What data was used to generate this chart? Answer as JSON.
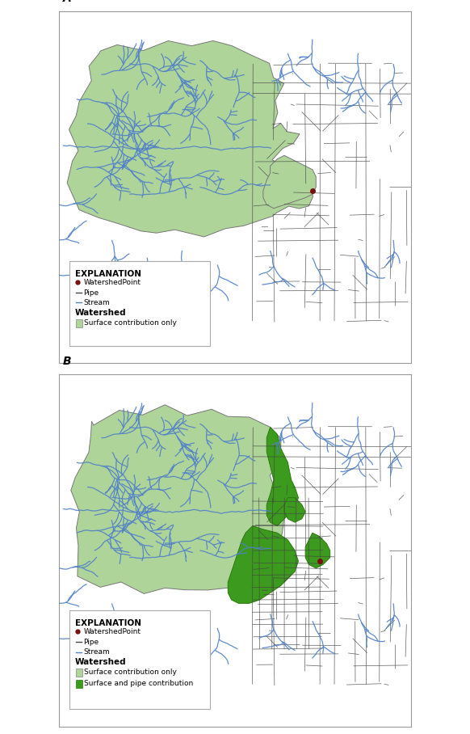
{
  "title_A": "A",
  "title_B": "B",
  "light_green": "#afd49a",
  "dark_green": "#3c9a1e",
  "stream_blue": "#5080c8",
  "pipe_gray": "#444444",
  "bg_white": "#ffffff",
  "watershed_point_color": "#7a1010",
  "map_bg": "#ffffff",
  "legend_A": {
    "title": "EXPLANATION",
    "watershed_point": "WatershedPoint",
    "pipe_label": "Pipe",
    "stream_label": "Stream",
    "watershed_title": "Watershed",
    "surface_only": "Surface contribution only"
  },
  "legend_B": {
    "title": "EXPLANATION",
    "watershed_point": "WatershedPoint",
    "pipe_label": "Pipe",
    "stream_label": "Stream",
    "watershed_title": "Watershed",
    "surface_only": "Surface contribution only",
    "surface_pipe": "Surface and pipe contribution"
  }
}
